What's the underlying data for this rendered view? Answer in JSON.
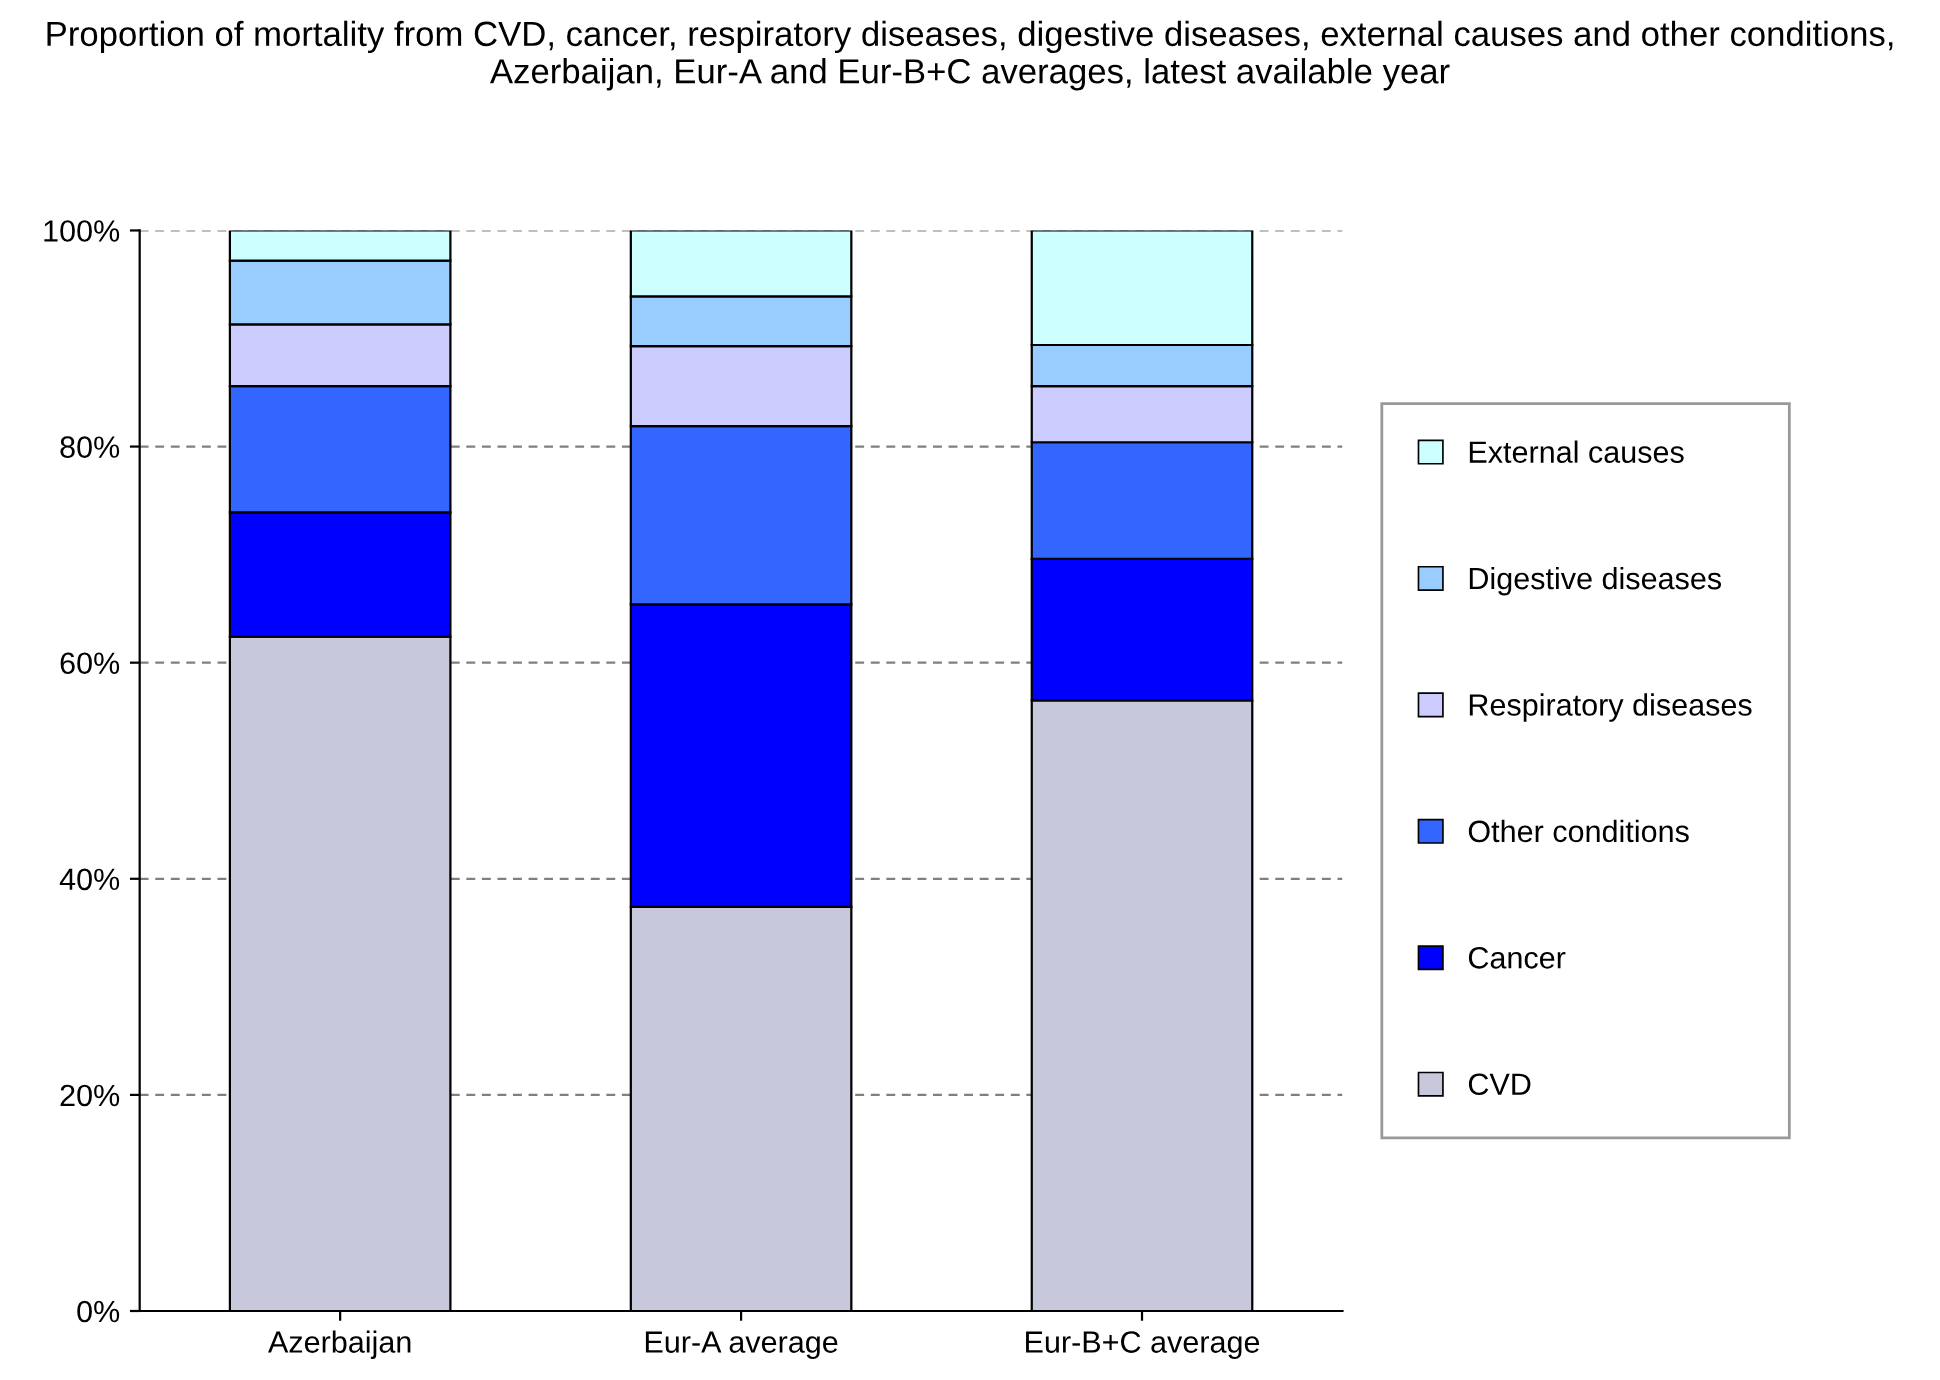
{
  "chart_data": {
    "type": "bar",
    "stacked": true,
    "title": "Proportion of mortality from CVD, cancer, respiratory diseases, digestive diseases, external causes and other conditions, Azerbaijan, Eur-A and Eur-B+C averages, latest available year",
    "categories": [
      "Azerbaijan",
      "Eur-A average",
      "Eur-B+C average"
    ],
    "series": [
      {
        "name": "CVD",
        "color": "#c8c8dc",
        "values": [
          62.4,
          37.4,
          56.5
        ]
      },
      {
        "name": "Cancer",
        "color": "#0000ff",
        "values": [
          11.5,
          28.0,
          13.1
        ]
      },
      {
        "name": "Other conditions",
        "color": "#3366ff",
        "values": [
          11.7,
          16.5,
          10.8
        ]
      },
      {
        "name": "Respiratory diseases",
        "color": "#ccccff",
        "values": [
          5.7,
          7.4,
          5.2
        ]
      },
      {
        "name": "Digestive diseases",
        "color": "#99ccff",
        "values": [
          5.9,
          4.6,
          3.8
        ]
      },
      {
        "name": "External causes",
        "color": "#ccffff",
        "values": [
          2.8,
          6.1,
          10.6
        ]
      }
    ],
    "ylim": [
      0,
      100
    ],
    "yticks": [
      {
        "value": 0,
        "label": "0%"
      },
      {
        "value": 20,
        "label": "20%"
      },
      {
        "value": 40,
        "label": "40%"
      },
      {
        "value": 60,
        "label": "60%"
      },
      {
        "value": 80,
        "label": "80%"
      },
      {
        "value": 100,
        "label": "100%"
      }
    ],
    "grid": "y",
    "legend": "right"
  }
}
